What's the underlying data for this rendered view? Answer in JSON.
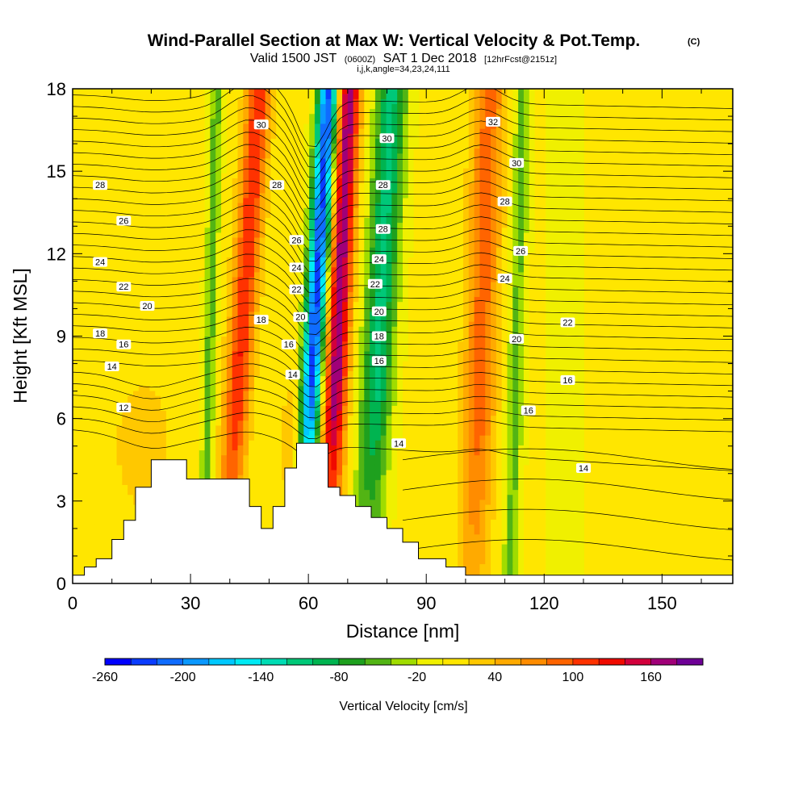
{
  "header": {
    "title": "Wind-Parallel Section at Max W: Vertical Velocity & Pot.Temp.",
    "copyright": "(C)",
    "valid_prefix": "Valid 1500 JST",
    "valid_utc": "(0600Z)",
    "valid_date": "SAT 1 Dec 2018",
    "forecast": "[12hrFcst@2151z]",
    "grid_info": "i,j,k,angle=34,23,24,111"
  },
  "chart_data": {
    "type": "heatmap",
    "title": "Wind-Parallel Section at Max W: Vertical Velocity & Pot.Temp.",
    "xlabel": "Distance [nm]",
    "ylabel": "Height [Kft MSL]",
    "xlim": [
      0,
      168
    ],
    "ylim": [
      0,
      18
    ],
    "x_ticks": [
      "0",
      "30",
      "60",
      "90",
      "120",
      "150"
    ],
    "x_tick_values": [
      0,
      30,
      60,
      90,
      120,
      150
    ],
    "y_ticks": [
      "0",
      "3",
      "6",
      "9",
      "12",
      "15",
      "18"
    ],
    "y_tick_values": [
      0,
      3,
      6,
      9,
      12,
      15,
      18
    ],
    "terrain": [
      [
        0,
        0.3
      ],
      [
        3,
        0.6
      ],
      [
        6,
        0.9
      ],
      [
        10,
        1.6
      ],
      [
        13,
        2.3
      ],
      [
        16,
        3.5
      ],
      [
        20,
        4.5
      ],
      [
        25,
        4.5
      ],
      [
        29,
        3.8
      ],
      [
        35,
        3.8
      ],
      [
        42,
        3.8
      ],
      [
        45,
        2.8
      ],
      [
        48,
        2.0
      ],
      [
        51,
        2.8
      ],
      [
        54,
        4.2
      ],
      [
        57,
        5.1
      ],
      [
        62,
        5.1
      ],
      [
        65,
        3.5
      ],
      [
        68,
        3.2
      ],
      [
        72,
        2.8
      ],
      [
        76,
        2.4
      ],
      [
        80,
        2.0
      ],
      [
        84,
        1.5
      ],
      [
        88,
        0.9
      ],
      [
        95,
        0.6
      ],
      [
        100,
        0.3
      ],
      [
        168,
        0.3
      ]
    ],
    "updrafts": [
      {
        "x_low": 37,
        "x_high": 46,
        "w_max": 120
      },
      {
        "x_low": 57,
        "x_high": 69,
        "w_max": 175
      },
      {
        "x_low": 96,
        "x_high": 108,
        "w_max": 90
      }
    ],
    "downdrafts": [
      {
        "x_low": 52,
        "x_high": 63,
        "w_min": -240
      },
      {
        "x_low": 68,
        "x_high": 80,
        "w_min": -120
      },
      {
        "x_low": 34,
        "x_high": 36,
        "w_min": -70
      },
      {
        "x_low": 109,
        "x_high": 116,
        "w_min": -60
      }
    ],
    "theta_labels": [
      {
        "text": "30",
        "x": 48,
        "y": 16.7
      },
      {
        "text": "28",
        "x": 52,
        "y": 14.5
      },
      {
        "text": "26",
        "x": 57,
        "y": 12.5
      },
      {
        "text": "24",
        "x": 57,
        "y": 11.5
      },
      {
        "text": "22",
        "x": 57,
        "y": 10.7
      },
      {
        "text": "20",
        "x": 58,
        "y": 9.7
      },
      {
        "text": "18",
        "x": 48,
        "y": 9.6
      },
      {
        "text": "16",
        "x": 55,
        "y": 8.7
      },
      {
        "text": "14",
        "x": 56,
        "y": 7.6
      },
      {
        "text": "28",
        "x": 7,
        "y": 14.5
      },
      {
        "text": "26",
        "x": 13,
        "y": 13.2
      },
      {
        "text": "24",
        "x": 7,
        "y": 11.7
      },
      {
        "text": "22",
        "x": 13,
        "y": 10.8
      },
      {
        "text": "20",
        "x": 19,
        "y": 10.1
      },
      {
        "text": "18",
        "x": 7,
        "y": 9.1
      },
      {
        "text": "16",
        "x": 13,
        "y": 8.7
      },
      {
        "text": "14",
        "x": 10,
        "y": 7.9
      },
      {
        "text": "12",
        "x": 13,
        "y": 6.4
      },
      {
        "text": "30",
        "x": 80,
        "y": 16.2
      },
      {
        "text": "28",
        "x": 79,
        "y": 14.5
      },
      {
        "text": "28",
        "x": 79,
        "y": 12.9
      },
      {
        "text": "24",
        "x": 78,
        "y": 11.8
      },
      {
        "text": "22",
        "x": 77,
        "y": 10.9
      },
      {
        "text": "20",
        "x": 78,
        "y": 9.9
      },
      {
        "text": "18",
        "x": 78,
        "y": 9.0
      },
      {
        "text": "16",
        "x": 78,
        "y": 8.1
      },
      {
        "text": "14",
        "x": 83,
        "y": 5.1
      },
      {
        "text": "32",
        "x": 107,
        "y": 16.8
      },
      {
        "text": "30",
        "x": 113,
        "y": 15.3
      },
      {
        "text": "28",
        "x": 110,
        "y": 13.9
      },
      {
        "text": "26",
        "x": 114,
        "y": 12.1
      },
      {
        "text": "24",
        "x": 110,
        "y": 11.1
      },
      {
        "text": "22",
        "x": 126,
        "y": 9.5
      },
      {
        "text": "20",
        "x": 113,
        "y": 8.9
      },
      {
        "text": "16",
        "x": 126,
        "y": 7.4
      },
      {
        "text": "16",
        "x": 116,
        "y": 6.3
      },
      {
        "text": "14",
        "x": 130,
        "y": 4.2
      }
    ],
    "colorbar": {
      "label": "Vertical Velocity [cm/s]",
      "tick_labels": [
        "-260",
        "-200",
        "-140",
        "-80",
        "-20",
        "40",
        "100",
        "160"
      ],
      "tick_values": [
        -260,
        -200,
        -140,
        -80,
        -20,
        40,
        100,
        160
      ],
      "levels": [
        -260,
        -240,
        -220,
        -200,
        -180,
        -160,
        -140,
        -120,
        -100,
        -80,
        -60,
        -40,
        -20,
        0,
        20,
        40,
        60,
        80,
        100,
        120,
        140,
        160,
        180
      ],
      "colors": [
        "#0000ff",
        "#0a3cff",
        "#0f6cff",
        "#0a98ff",
        "#00c8ff",
        "#00eaf4",
        "#00dcb4",
        "#00c878",
        "#00b450",
        "#1ea01e",
        "#52b414",
        "#a0dc00",
        "#f0f000",
        "#ffe600",
        "#ffc800",
        "#ffaa00",
        "#ff8c00",
        "#ff6400",
        "#ff3200",
        "#f00a00",
        "#d2003c",
        "#a00078",
        "#6e0096"
      ]
    }
  }
}
